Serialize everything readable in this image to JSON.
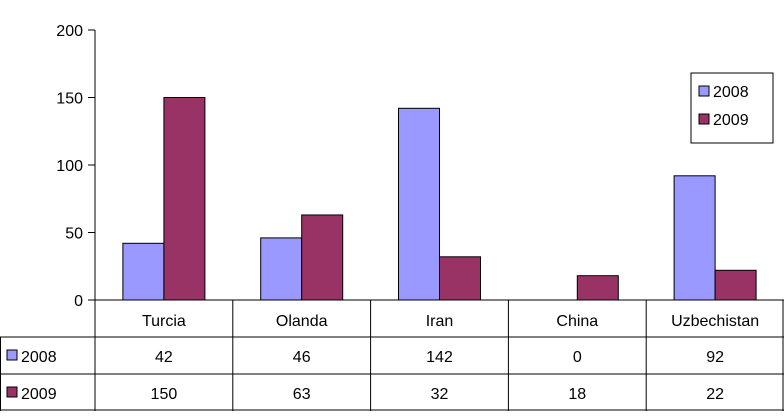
{
  "chart_data": {
    "type": "bar",
    "title": "",
    "xlabel": "",
    "ylabel": "",
    "ylim": [
      0,
      200
    ],
    "yticks": [
      0,
      50,
      100,
      150,
      200
    ],
    "categories": [
      "Turcia",
      "Olanda",
      "Iran",
      "China",
      "Uzbechistan"
    ],
    "series": [
      {
        "name": "2008",
        "values": [
          42,
          46,
          142,
          0,
          92
        ],
        "color": "#9999ff"
      },
      {
        "name": "2009",
        "values": [
          150,
          63,
          32,
          18,
          22
        ],
        "color": "#993366"
      }
    ],
    "legend_position": "right",
    "data_table": true,
    "grid": false
  }
}
